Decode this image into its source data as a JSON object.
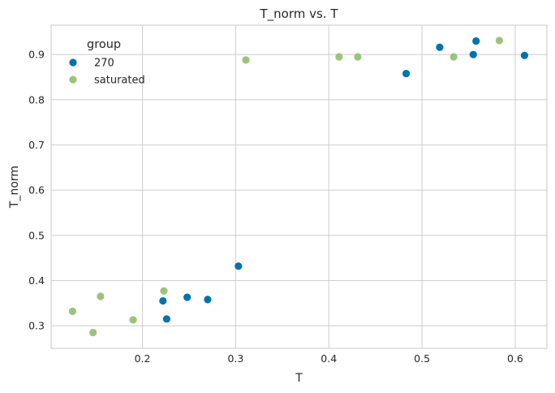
{
  "chart_data": {
    "type": "scatter",
    "title": "T_norm vs. T",
    "xlabel": "T",
    "ylabel": "T_norm",
    "xlim": [
      0.102,
      0.634
    ],
    "ylim": [
      0.25,
      0.965
    ],
    "xticks": [
      0.2,
      0.3,
      0.4,
      0.5,
      0.6
    ],
    "yticks": [
      0.3,
      0.4,
      0.5,
      0.6,
      0.7,
      0.8,
      0.9
    ],
    "grid": true,
    "legend": {
      "title": "group",
      "placement": "top-left"
    },
    "series": [
      {
        "name": "270",
        "color": "#0072b2",
        "points": [
          {
            "x": 0.222,
            "y": 0.355
          },
          {
            "x": 0.226,
            "y": 0.315
          },
          {
            "x": 0.248,
            "y": 0.363
          },
          {
            "x": 0.27,
            "y": 0.358
          },
          {
            "x": 0.303,
            "y": 0.432
          },
          {
            "x": 0.483,
            "y": 0.858
          },
          {
            "x": 0.519,
            "y": 0.916
          },
          {
            "x": 0.555,
            "y": 0.9
          },
          {
            "x": 0.558,
            "y": 0.93
          },
          {
            "x": 0.61,
            "y": 0.898
          }
        ]
      },
      {
        "name": "saturated",
        "color": "#9dc27a",
        "points": [
          {
            "x": 0.125,
            "y": 0.332
          },
          {
            "x": 0.147,
            "y": 0.285
          },
          {
            "x": 0.155,
            "y": 0.365
          },
          {
            "x": 0.19,
            "y": 0.313
          },
          {
            "x": 0.223,
            "y": 0.377
          },
          {
            "x": 0.311,
            "y": 0.888
          },
          {
            "x": 0.411,
            "y": 0.895
          },
          {
            "x": 0.431,
            "y": 0.895
          },
          {
            "x": 0.534,
            "y": 0.895
          },
          {
            "x": 0.583,
            "y": 0.931
          }
        ]
      }
    ]
  }
}
